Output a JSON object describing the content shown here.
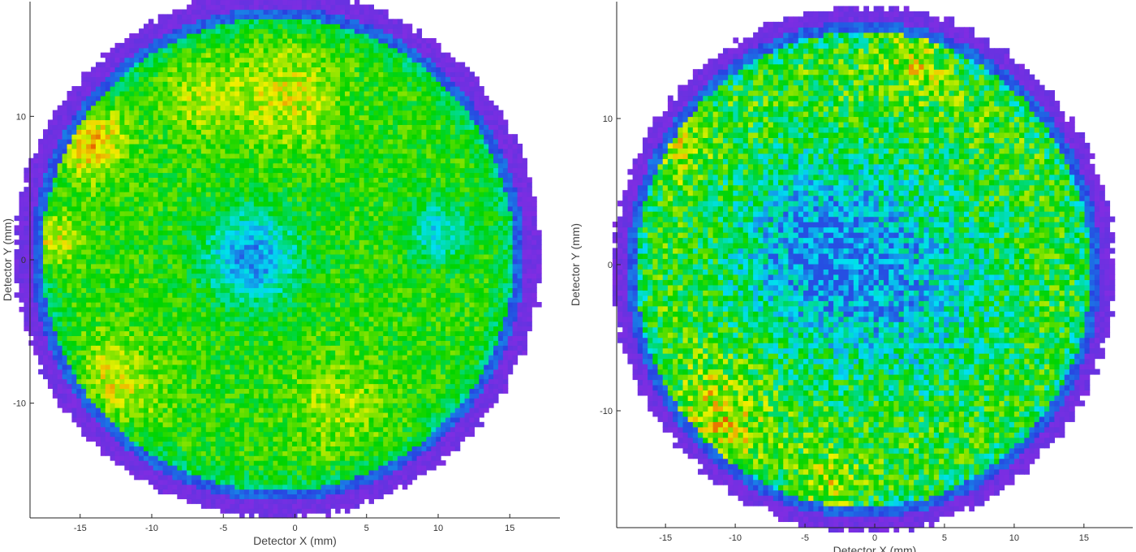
{
  "chart_data": [
    {
      "type": "heatmap",
      "title": "",
      "xlabel": "Detector X (mm)",
      "ylabel": "Detector Y (mm)",
      "xlim": [
        -18.5,
        18.5
      ],
      "ylim": [
        -18.0,
        18.0
      ],
      "xticks": [
        -15,
        -10,
        -5,
        0,
        5,
        10,
        15
      ],
      "yticks": [
        -10,
        0,
        10
      ],
      "grid": false,
      "legend": "none",
      "colormap": [
        "#8a2be2",
        "#2a3fe0",
        "#00e0f0",
        "#00d400",
        "#f0f000",
        "#e00000"
      ],
      "detector_disk": {
        "center": [
          -1.2,
          0.4
        ],
        "radius": 17.2,
        "rim_width": 1.2
      },
      "description_of_intensity": {
        "cells_per_axis": 110,
        "hot_regions": [
          {
            "x": -15.0,
            "y": 8.5,
            "sigma": 2.0,
            "amp": 0.9
          },
          {
            "x": -17.5,
            "y": 1.5,
            "sigma": 1.5,
            "amp": 0.8
          },
          {
            "x": -13.0,
            "y": -9.0,
            "sigma": 2.5,
            "amp": 0.55
          },
          {
            "x": -6.5,
            "y": 11.5,
            "sigma": 2.0,
            "amp": 0.4
          },
          {
            "x": -0.5,
            "y": 11.5,
            "sigma": 2.5,
            "amp": 0.5
          },
          {
            "x": 3.0,
            "y": -10.0,
            "sigma": 2.5,
            "amp": 0.35
          }
        ],
        "cold_regions": [
          {
            "x": -3.0,
            "y": 0.2,
            "sigma": 2.2,
            "amp": 1.1
          },
          {
            "x": 10.0,
            "y": 2.0,
            "sigma": 1.5,
            "amp": 0.7
          }
        ],
        "noise": 0.18,
        "seed": 7
      }
    },
    {
      "type": "heatmap",
      "title": "",
      "xlabel": "Detector X (mm)",
      "ylabel": "Detector Y (mm)",
      "xlim": [
        -18.5,
        18.5
      ],
      "ylim": [
        -18.0,
        18.0
      ],
      "xticks": [
        -15,
        -10,
        -5,
        0,
        5,
        10,
        15
      ],
      "yticks": [
        -10,
        0,
        10
      ],
      "grid": false,
      "legend": "none",
      "colormap": [
        "#8a2be2",
        "#2a3fe0",
        "#00e0f0",
        "#00d400",
        "#f0f000",
        "#e00000"
      ],
      "detector_disk": {
        "center": [
          -0.8,
          -0.3
        ],
        "radius": 17.0,
        "rim_width": 1.0
      },
      "description_of_intensity": {
        "cells_per_axis": 100,
        "hot_regions": [
          {
            "x": -15.0,
            "y": 9.0,
            "sigma": 1.8,
            "amp": 0.8
          },
          {
            "x": -12.0,
            "y": -11.0,
            "sigma": 2.5,
            "amp": 0.65
          },
          {
            "x": -3.5,
            "y": -16.5,
            "sigma": 1.8,
            "amp": 0.6
          },
          {
            "x": 3.0,
            "y": 15.0,
            "sigma": 2.0,
            "amp": 0.5
          }
        ],
        "cold_regions": [
          {
            "x": -4.0,
            "y": 1.0,
            "sigma": 4.5,
            "amp": 1.0
          },
          {
            "x": 3.0,
            "y": -2.0,
            "sigma": 5.0,
            "amp": 0.6
          }
        ],
        "noise": 0.32,
        "seed": 13
      }
    }
  ]
}
